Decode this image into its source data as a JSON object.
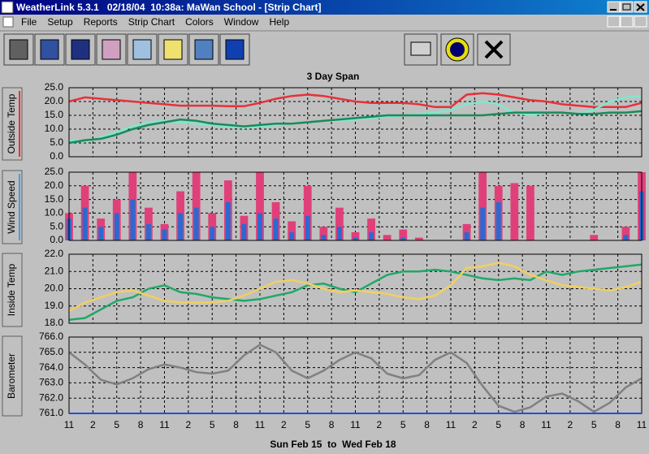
{
  "window": {
    "title": "WeatherLink 5.3.1   02/18/04  10:38a: MaWan School - [Strip Chart]"
  },
  "menu": [
    "File",
    "Setup",
    "Reports",
    "Strip Chart",
    "Colors",
    "Window",
    "Help"
  ],
  "strip_chart": {
    "title": "3 Day Span",
    "footer": "Sun Feb 15  to  Wed Feb 18",
    "xlim": [
      0,
      72
    ],
    "xticks": [
      {
        "value": 0,
        "label": "11"
      },
      {
        "value": 3,
        "label": "2"
      },
      {
        "value": 6,
        "label": "5"
      },
      {
        "value": 9,
        "label": "8"
      },
      {
        "value": 12,
        "label": "11"
      },
      {
        "value": 15,
        "label": "2"
      },
      {
        "value": 18,
        "label": "5"
      },
      {
        "value": 21,
        "label": "8"
      },
      {
        "value": 24,
        "label": "11"
      },
      {
        "value": 27,
        "label": "2"
      },
      {
        "value": 30,
        "label": "5"
      },
      {
        "value": 33,
        "label": "8"
      },
      {
        "value": 36,
        "label": "11"
      },
      {
        "value": 39,
        "label": "2"
      },
      {
        "value": 42,
        "label": "5"
      },
      {
        "value": 45,
        "label": "8"
      },
      {
        "value": 48,
        "label": "11"
      },
      {
        "value": 51,
        "label": "2"
      },
      {
        "value": 54,
        "label": "5"
      },
      {
        "value": 57,
        "label": "8"
      },
      {
        "value": 60,
        "label": "11"
      },
      {
        "value": 63,
        "label": "2"
      },
      {
        "value": 66,
        "label": "5"
      },
      {
        "value": 69,
        "label": "8"
      },
      {
        "value": 72,
        "label": "11"
      }
    ],
    "x": [
      0,
      2,
      4,
      6,
      8,
      10,
      12,
      14,
      16,
      18,
      20,
      22,
      24,
      26,
      28,
      30,
      32,
      34,
      36,
      38,
      40,
      42,
      44,
      46,
      48,
      50,
      52,
      54,
      56,
      58,
      60,
      62,
      64,
      66,
      68,
      70,
      72
    ],
    "panels": [
      {
        "label": "Outside Temp",
        "type": "line",
        "ylim": [
          0,
          25
        ],
        "yticks": [
          {
            "value": 0,
            "label": "0.0"
          },
          {
            "value": 5,
            "label": "5.0"
          },
          {
            "value": 10,
            "label": "10.0"
          },
          {
            "value": 15,
            "label": "15.0"
          },
          {
            "value": 20,
            "label": "20.0"
          },
          {
            "value": 25,
            "label": "25.0"
          }
        ],
        "series": [
          {
            "color": "#e8303a",
            "values": [
              20,
              21.5,
              21,
              20.5,
              20,
              19.5,
              19,
              18.5,
              18.5,
              18.5,
              18.3,
              18.3,
              19.5,
              21,
              22,
              22.5,
              22,
              21,
              20,
              19.5,
              19.5,
              19.5,
              19,
              18,
              18,
              22.5,
              23,
              22.5,
              21.5,
              20.5,
              20,
              19,
              18.5,
              18,
              18,
              18,
              19.5
            ]
          },
          {
            "color": "#7fe8cc",
            "values": [
              6,
              5.5,
              7,
              9,
              11,
              12.5,
              13,
              12.5,
              12,
              11.5,
              11,
              10.5,
              11,
              11.5,
              12,
              12.5,
              13,
              13,
              13.5,
              14,
              14.5,
              15,
              15.5,
              16,
              17,
              19,
              20,
              19,
              16,
              15,
              16,
              16,
              15.5,
              17,
              20,
              21.5,
              22
            ]
          },
          {
            "color": "#1a8a5a",
            "values": [
              5,
              6,
              6.5,
              8,
              10,
              11.5,
              12.5,
              13.5,
              13,
              12,
              11.5,
              11,
              11.5,
              12,
              12,
              12.5,
              13,
              13.5,
              14,
              14.5,
              15,
              15,
              15,
              15,
              15,
              15,
              15,
              15.5,
              16,
              16,
              16,
              16,
              15.5,
              15.5,
              16,
              16,
              16.5
            ]
          }
        ]
      },
      {
        "label": "Wind Speed",
        "type": "bar",
        "ylim": [
          0,
          25
        ],
        "yticks": [
          {
            "value": 0,
            "label": "0.0"
          },
          {
            "value": 5,
            "label": "5.0"
          },
          {
            "value": 10,
            "label": "10.0"
          },
          {
            "value": 15,
            "label": "15.0"
          },
          {
            "value": 20,
            "label": "20.0"
          },
          {
            "value": 25,
            "label": "25.0"
          }
        ],
        "series": [
          {
            "color": "#e0407a",
            "values": [
              10,
              20,
              8,
              15,
              25,
              12,
              6,
              18,
              25,
              10,
              22,
              9,
              25,
              14,
              7,
              20,
              5,
              12,
              3,
              8,
              2,
              4,
              1,
              0,
              0,
              6,
              25,
              20,
              21,
              20,
              0,
              0,
              0,
              2,
              0,
              5,
              25
            ]
          },
          {
            "color": "#2a6ad0",
            "values": [
              8,
              12,
              5,
              10,
              15,
              6,
              4,
              10,
              12,
              5,
              14,
              6,
              10,
              8,
              3,
              9,
              2,
              5,
              1,
              3,
              0,
              1,
              0,
              0,
              0,
              3,
              12,
              14,
              0,
              0,
              0,
              0,
              0,
              0,
              0,
              2,
              18
            ]
          }
        ]
      },
      {
        "label": "Inside Temp",
        "type": "line",
        "ylim": [
          18,
          22
        ],
        "yticks": [
          {
            "value": 18,
            "label": "18.0"
          },
          {
            "value": 19,
            "label": "19.0"
          },
          {
            "value": 20,
            "label": "20.0"
          },
          {
            "value": 21,
            "label": "21.0"
          },
          {
            "value": 22,
            "label": "22.0"
          }
        ],
        "series": [
          {
            "color": "#20a868",
            "values": [
              18.2,
              18.3,
              18.8,
              19.3,
              19.5,
              20,
              20.2,
              19.8,
              19.7,
              19.5,
              19.4,
              19.3,
              19.4,
              19.6,
              19.8,
              20.2,
              20.3,
              20,
              19.8,
              20.3,
              20.8,
              21,
              21,
              21.1,
              21,
              20.8,
              20.6,
              20.5,
              20.6,
              20.5,
              21,
              20.8,
              21,
              21.1,
              21.2,
              21.3,
              21.4
            ]
          },
          {
            "color": "#f0d060",
            "values": [
              18.7,
              19.2,
              19.5,
              19.8,
              19.9,
              19.6,
              19.3,
              19.2,
              19.2,
              19.2,
              19.3,
              19.6,
              20,
              20.4,
              20.5,
              20.3,
              20,
              19.8,
              19.9,
              19.8,
              19.7,
              19.5,
              19.4,
              19.6,
              20.2,
              21.2,
              21.3,
              21.5,
              21.3,
              20.8,
              20.5,
              20.2,
              20.1,
              20,
              19.9,
              20.1,
              20.4
            ]
          }
        ]
      },
      {
        "label": "Barometer",
        "type": "line",
        "ylim": [
          761,
          766
        ],
        "yticks": [
          {
            "value": 761,
            "label": "761.0"
          },
          {
            "value": 762,
            "label": "762.0"
          },
          {
            "value": 763,
            "label": "763.0"
          },
          {
            "value": 764,
            "label": "764.0"
          },
          {
            "value": 765,
            "label": "765.0"
          },
          {
            "value": 766,
            "label": "766.0"
          }
        ],
        "series": [
          {
            "color": "#808080",
            "values": [
              765,
              764.2,
              763.2,
              762.9,
              763.3,
              763.9,
              764.2,
              764,
              763.7,
              763.6,
              763.8,
              764.8,
              765.5,
              765,
              763.8,
              763.3,
              763.8,
              764.5,
              765,
              764.6,
              763.6,
              763.3,
              763.5,
              764.5,
              765,
              764.3,
              762.8,
              761.5,
              761.1,
              761.4,
              762.1,
              762.3,
              761.8,
              761.1,
              761.7,
              762.7,
              763.3
            ]
          }
        ]
      }
    ]
  }
}
